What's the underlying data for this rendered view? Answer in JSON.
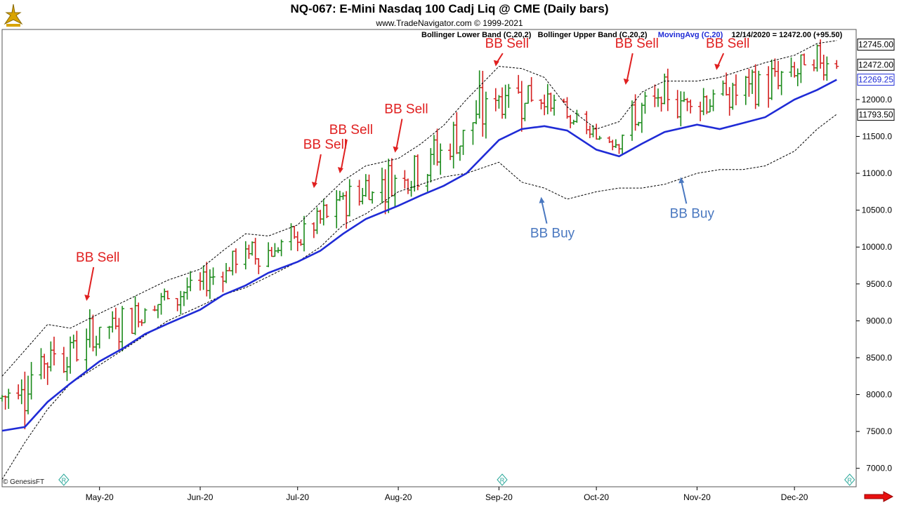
{
  "header": {
    "title": "NQ-067:  E-Mini Nasdaq 100 Cadj Liq @ CME  (Daily bars)",
    "subtitle": "www.TradeNavigator.com © 1999-2021",
    "lower_band_label": "Bollinger Lower Band (C,20,2)",
    "upper_band_label": "Bollinger Upper Band (C,20,2)",
    "ma_label": "MovingAvg (C,20)",
    "last_info": "12/14/2020 = 12472.00 (+95.50)"
  },
  "footer": {
    "copyright": "© GenesisFT"
  },
  "colors": {
    "up_bar": "#1a8a1a",
    "down_bar": "#d42020",
    "moving_avg": "#1f2bd6",
    "bands": "#000000",
    "sell_annotation": "#e02020",
    "buy_annotation": "#4a78c0",
    "arrow_button": "#e81010"
  },
  "chart_data": {
    "type": "line",
    "title": "NQ-067:  E-Mini Nasdaq 100 Cadj Liq @ CME  (Daily bars)",
    "ylim": [
      6750,
      12950
    ],
    "y_ticks": [
      7000,
      7500,
      8000,
      8500,
      9000,
      9500,
      10000,
      10500,
      11000,
      11500,
      12000
    ],
    "y_tick_labels": [
      "7000.0",
      "7500.0",
      "8000.0",
      "8500.0",
      "9000.0",
      "9500.0",
      "10000.0",
      "10500.0",
      "11000.0",
      "11500.0",
      "12000.0"
    ],
    "x_ticks": [
      "May-20",
      "Jun-20",
      "Jul-20",
      "Aug-20",
      "Sep-20",
      "Oct-20",
      "Nov-20",
      "Dec-20"
    ],
    "x_tick_dates": [
      "2020-05-01",
      "2020-06-01",
      "2020-07-01",
      "2020-08-01",
      "2020-09-01",
      "2020-10-01",
      "2020-11-01",
      "2020-12-01"
    ],
    "x_range": [
      "2020-04-01",
      "2020-12-20"
    ],
    "price_tags": [
      {
        "value": 12745.0,
        "label": "12745.00",
        "style": "dark"
      },
      {
        "value": 12472.0,
        "label": "12472.00",
        "style": "dark"
      },
      {
        "value": 12269.25,
        "label": "12269.25",
        "style": "blue"
      },
      {
        "value": 11793.5,
        "label": "11793.50",
        "style": "dark"
      }
    ],
    "grid": false,
    "series": [
      {
        "name": "MovingAvg (C,20)",
        "points": [
          [
            "2020-04-01",
            7510
          ],
          [
            "2020-04-08",
            7560
          ],
          [
            "2020-04-15",
            7900
          ],
          [
            "2020-04-22",
            8150
          ],
          [
            "2020-05-01",
            8450
          ],
          [
            "2020-05-08",
            8620
          ],
          [
            "2020-05-15",
            8820
          ],
          [
            "2020-05-22",
            8960
          ],
          [
            "2020-06-01",
            9150
          ],
          [
            "2020-06-08",
            9350
          ],
          [
            "2020-06-15",
            9480
          ],
          [
            "2020-06-22",
            9650
          ],
          [
            "2020-07-01",
            9800
          ],
          [
            "2020-07-08",
            9950
          ],
          [
            "2020-07-15",
            10180
          ],
          [
            "2020-07-22",
            10380
          ],
          [
            "2020-08-01",
            10560
          ],
          [
            "2020-08-08",
            10700
          ],
          [
            "2020-08-15",
            10830
          ],
          [
            "2020-08-22",
            11000
          ],
          [
            "2020-09-01",
            11450
          ],
          [
            "2020-09-08",
            11600
          ],
          [
            "2020-09-15",
            11640
          ],
          [
            "2020-09-22",
            11580
          ],
          [
            "2020-10-01",
            11320
          ],
          [
            "2020-10-08",
            11230
          ],
          [
            "2020-10-15",
            11400
          ],
          [
            "2020-10-22",
            11560
          ],
          [
            "2020-11-01",
            11660
          ],
          [
            "2020-11-08",
            11600
          ],
          [
            "2020-11-15",
            11680
          ],
          [
            "2020-11-22",
            11760
          ],
          [
            "2020-12-01",
            12000
          ],
          [
            "2020-12-08",
            12130
          ],
          [
            "2020-12-14",
            12269
          ]
        ]
      },
      {
        "name": "Bollinger Upper Band (C,20,2)",
        "points": [
          [
            "2020-04-01",
            8250
          ],
          [
            "2020-04-08",
            8600
          ],
          [
            "2020-04-15",
            8950
          ],
          [
            "2020-04-22",
            8900
          ],
          [
            "2020-05-01",
            9100
          ],
          [
            "2020-05-08",
            9250
          ],
          [
            "2020-05-15",
            9400
          ],
          [
            "2020-05-22",
            9550
          ],
          [
            "2020-06-01",
            9700
          ],
          [
            "2020-06-08",
            9950
          ],
          [
            "2020-06-15",
            10180
          ],
          [
            "2020-06-22",
            10150
          ],
          [
            "2020-07-01",
            10300
          ],
          [
            "2020-07-08",
            10600
          ],
          [
            "2020-07-15",
            10900
          ],
          [
            "2020-07-22",
            11100
          ],
          [
            "2020-08-01",
            11200
          ],
          [
            "2020-08-08",
            11400
          ],
          [
            "2020-08-15",
            11650
          ],
          [
            "2020-08-22",
            12000
          ],
          [
            "2020-09-01",
            12450
          ],
          [
            "2020-09-08",
            12420
          ],
          [
            "2020-09-15",
            12300
          ],
          [
            "2020-09-22",
            11900
          ],
          [
            "2020-10-01",
            11600
          ],
          [
            "2020-10-08",
            11700
          ],
          [
            "2020-10-15",
            12100
          ],
          [
            "2020-10-22",
            12250
          ],
          [
            "2020-11-01",
            12250
          ],
          [
            "2020-11-08",
            12300
          ],
          [
            "2020-11-15",
            12400
          ],
          [
            "2020-11-22",
            12500
          ],
          [
            "2020-12-01",
            12600
          ],
          [
            "2020-12-08",
            12760
          ],
          [
            "2020-12-14",
            12800
          ]
        ]
      },
      {
        "name": "Bollinger Lower Band (C,20,2)",
        "points": [
          [
            "2020-04-01",
            6850
          ],
          [
            "2020-04-08",
            7350
          ],
          [
            "2020-04-15",
            7800
          ],
          [
            "2020-04-22",
            8150
          ],
          [
            "2020-05-01",
            8400
          ],
          [
            "2020-05-08",
            8600
          ],
          [
            "2020-05-15",
            8800
          ],
          [
            "2020-05-22",
            9000
          ],
          [
            "2020-06-01",
            9200
          ],
          [
            "2020-06-08",
            9350
          ],
          [
            "2020-06-15",
            9450
          ],
          [
            "2020-06-22",
            9600
          ],
          [
            "2020-07-01",
            9800
          ],
          [
            "2020-07-08",
            10000
          ],
          [
            "2020-07-15",
            10300
          ],
          [
            "2020-07-22",
            10450
          ],
          [
            "2020-08-01",
            10750
          ],
          [
            "2020-08-08",
            10850
          ],
          [
            "2020-08-15",
            10950
          ],
          [
            "2020-08-22",
            11000
          ],
          [
            "2020-09-01",
            11150
          ],
          [
            "2020-09-08",
            10880
          ],
          [
            "2020-09-15",
            10800
          ],
          [
            "2020-09-22",
            10650
          ],
          [
            "2020-10-01",
            10750
          ],
          [
            "2020-10-08",
            10800
          ],
          [
            "2020-10-15",
            10800
          ],
          [
            "2020-10-22",
            10850
          ],
          [
            "2020-11-01",
            11000
          ],
          [
            "2020-11-08",
            11050
          ],
          [
            "2020-11-15",
            11050
          ],
          [
            "2020-11-22",
            11100
          ],
          [
            "2020-12-01",
            11300
          ],
          [
            "2020-12-08",
            11600
          ],
          [
            "2020-12-14",
            11800
          ]
        ]
      }
    ],
    "annotations": [
      {
        "text": "BB Sell",
        "date": "2020-04-27",
        "value": 9270,
        "type": "sell"
      },
      {
        "text": "BB Sell",
        "date": "2020-07-06",
        "value": 10800,
        "type": "sell"
      },
      {
        "text": "BB Sell",
        "date": "2020-07-14",
        "value": 11000,
        "type": "sell"
      },
      {
        "text": "BB Sell",
        "date": "2020-07-31",
        "value": 11280,
        "type": "sell"
      },
      {
        "text": "BB Sell",
        "date": "2020-08-31",
        "value": 12450,
        "type": "sell"
      },
      {
        "text": "BB Sell",
        "date": "2020-10-10",
        "value": 12200,
        "type": "sell"
      },
      {
        "text": "BB Sell",
        "date": "2020-11-07",
        "value": 12400,
        "type": "sell"
      },
      {
        "text": "BB Buy",
        "date": "2020-09-14",
        "value": 10680,
        "type": "buy"
      },
      {
        "text": "BB Buy",
        "date": "2020-10-27",
        "value": 10950,
        "type": "buy"
      }
    ]
  }
}
